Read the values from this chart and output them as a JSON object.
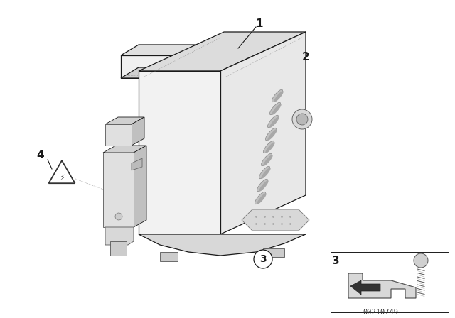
{
  "background_color": "#ffffff",
  "image_id": "00210749",
  "fig_width": 6.4,
  "fig_height": 4.48,
  "dpi": 100,
  "line_color": "#1a1a1a",
  "label_fontsize": 11,
  "label_fontweight": "bold",
  "dot_color": "#555555",
  "face_light": "#f8f8f8",
  "face_mid": "#e8e8e8",
  "face_dark": "#d0d0d0",
  "face_darker": "#b8b8b8"
}
